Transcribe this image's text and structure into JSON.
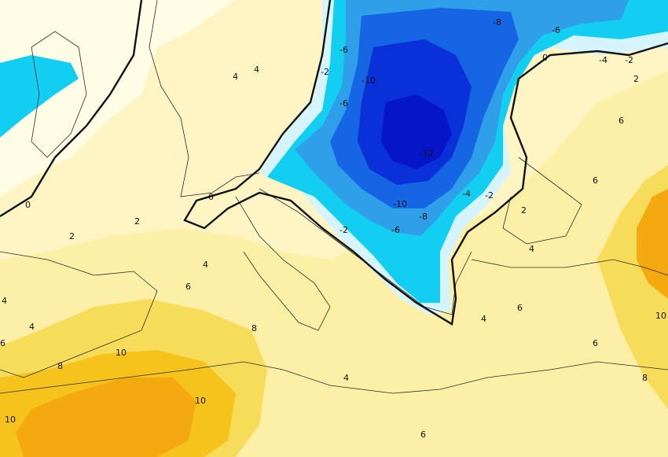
{
  "map": {
    "colors": {
      "warm_vlight": "#fffde6",
      "warm_light": "#fff5c4",
      "warm_pale": "#fdf0a6",
      "warm_yellow": "#f7dc5a",
      "warm_gold": "#f5c31c",
      "warm_orange": "#f4a90f",
      "cold_light": "#d6f4fb",
      "cold_cyan": "#12cff2",
      "cold_sky": "#2f9fe9",
      "cold_blue": "#1565e4",
      "cold_deep": "#0a31d9",
      "cold_core": "#0416c8",
      "zero_line": "#111111",
      "borders": "#2a2a2a"
    },
    "contour_labels": [
      {
        "id": "minus8-n",
        "text": "-8"
      },
      {
        "id": "minus6-ne",
        "text": "-6"
      },
      {
        "id": "minus6-nw",
        "text": "-6"
      },
      {
        "id": "minus4-far-ne",
        "text": "-4"
      },
      {
        "id": "minus2-far-ne",
        "text": "-2"
      },
      {
        "id": "minus2-west",
        "text": "-2"
      },
      {
        "id": "minus10-north",
        "text": "-10"
      },
      {
        "id": "minus12-core",
        "text": "-12"
      },
      {
        "id": "minus10-south",
        "text": "-10"
      },
      {
        "id": "minus8-south",
        "text": "-8"
      },
      {
        "id": "minus6-alps",
        "text": "-6"
      },
      {
        "id": "minus4-east",
        "text": "-4"
      },
      {
        "id": "minus2-east",
        "text": "-2"
      },
      {
        "id": "minus2-adriatic",
        "text": "-2"
      },
      {
        "id": "minus6-balkans",
        "text": "-6"
      },
      {
        "id": "zero-ne",
        "text": "0"
      },
      {
        "id": "zero-alps",
        "text": "0"
      },
      {
        "id": "zero-west",
        "text": "0"
      },
      {
        "id": "plus2-black-sea",
        "text": "2"
      },
      {
        "id": "plus2-east",
        "text": "2"
      },
      {
        "id": "plus2-france",
        "text": "2"
      },
      {
        "id": "plus2-iberia",
        "text": "2"
      },
      {
        "id": "plus4-germany",
        "text": "4"
      },
      {
        "id": "plus4-germany-b",
        "text": "4"
      },
      {
        "id": "plus4-italy",
        "text": "4"
      },
      {
        "id": "plus4-iberia",
        "text": "4"
      },
      {
        "id": "plus4-greece",
        "text": "4"
      },
      {
        "id": "plus4-turkey",
        "text": "4"
      },
      {
        "id": "plus4-med",
        "text": "4"
      },
      {
        "id": "plus4-far-west",
        "text": "4"
      },
      {
        "id": "plus6-ukraine",
        "text": "6"
      },
      {
        "id": "plus6-russia",
        "text": "6"
      },
      {
        "id": "plus6-sardinia",
        "text": "6"
      },
      {
        "id": "plus6-aegean",
        "text": "6"
      },
      {
        "id": "plus6-libya",
        "text": "6"
      },
      {
        "id": "plus6-levant",
        "text": "6"
      },
      {
        "id": "plus6-far-west",
        "text": "6"
      },
      {
        "id": "plus8-tunisia",
        "text": "8"
      },
      {
        "id": "plus8-algeria",
        "text": "8"
      },
      {
        "id": "plus8-east",
        "text": "8"
      },
      {
        "id": "plus10-algeria",
        "text": "10"
      },
      {
        "id": "plus10-sahara",
        "text": "10"
      },
      {
        "id": "plus10-sw",
        "text": "10"
      },
      {
        "id": "plus10-east",
        "text": "10"
      }
    ]
  }
}
